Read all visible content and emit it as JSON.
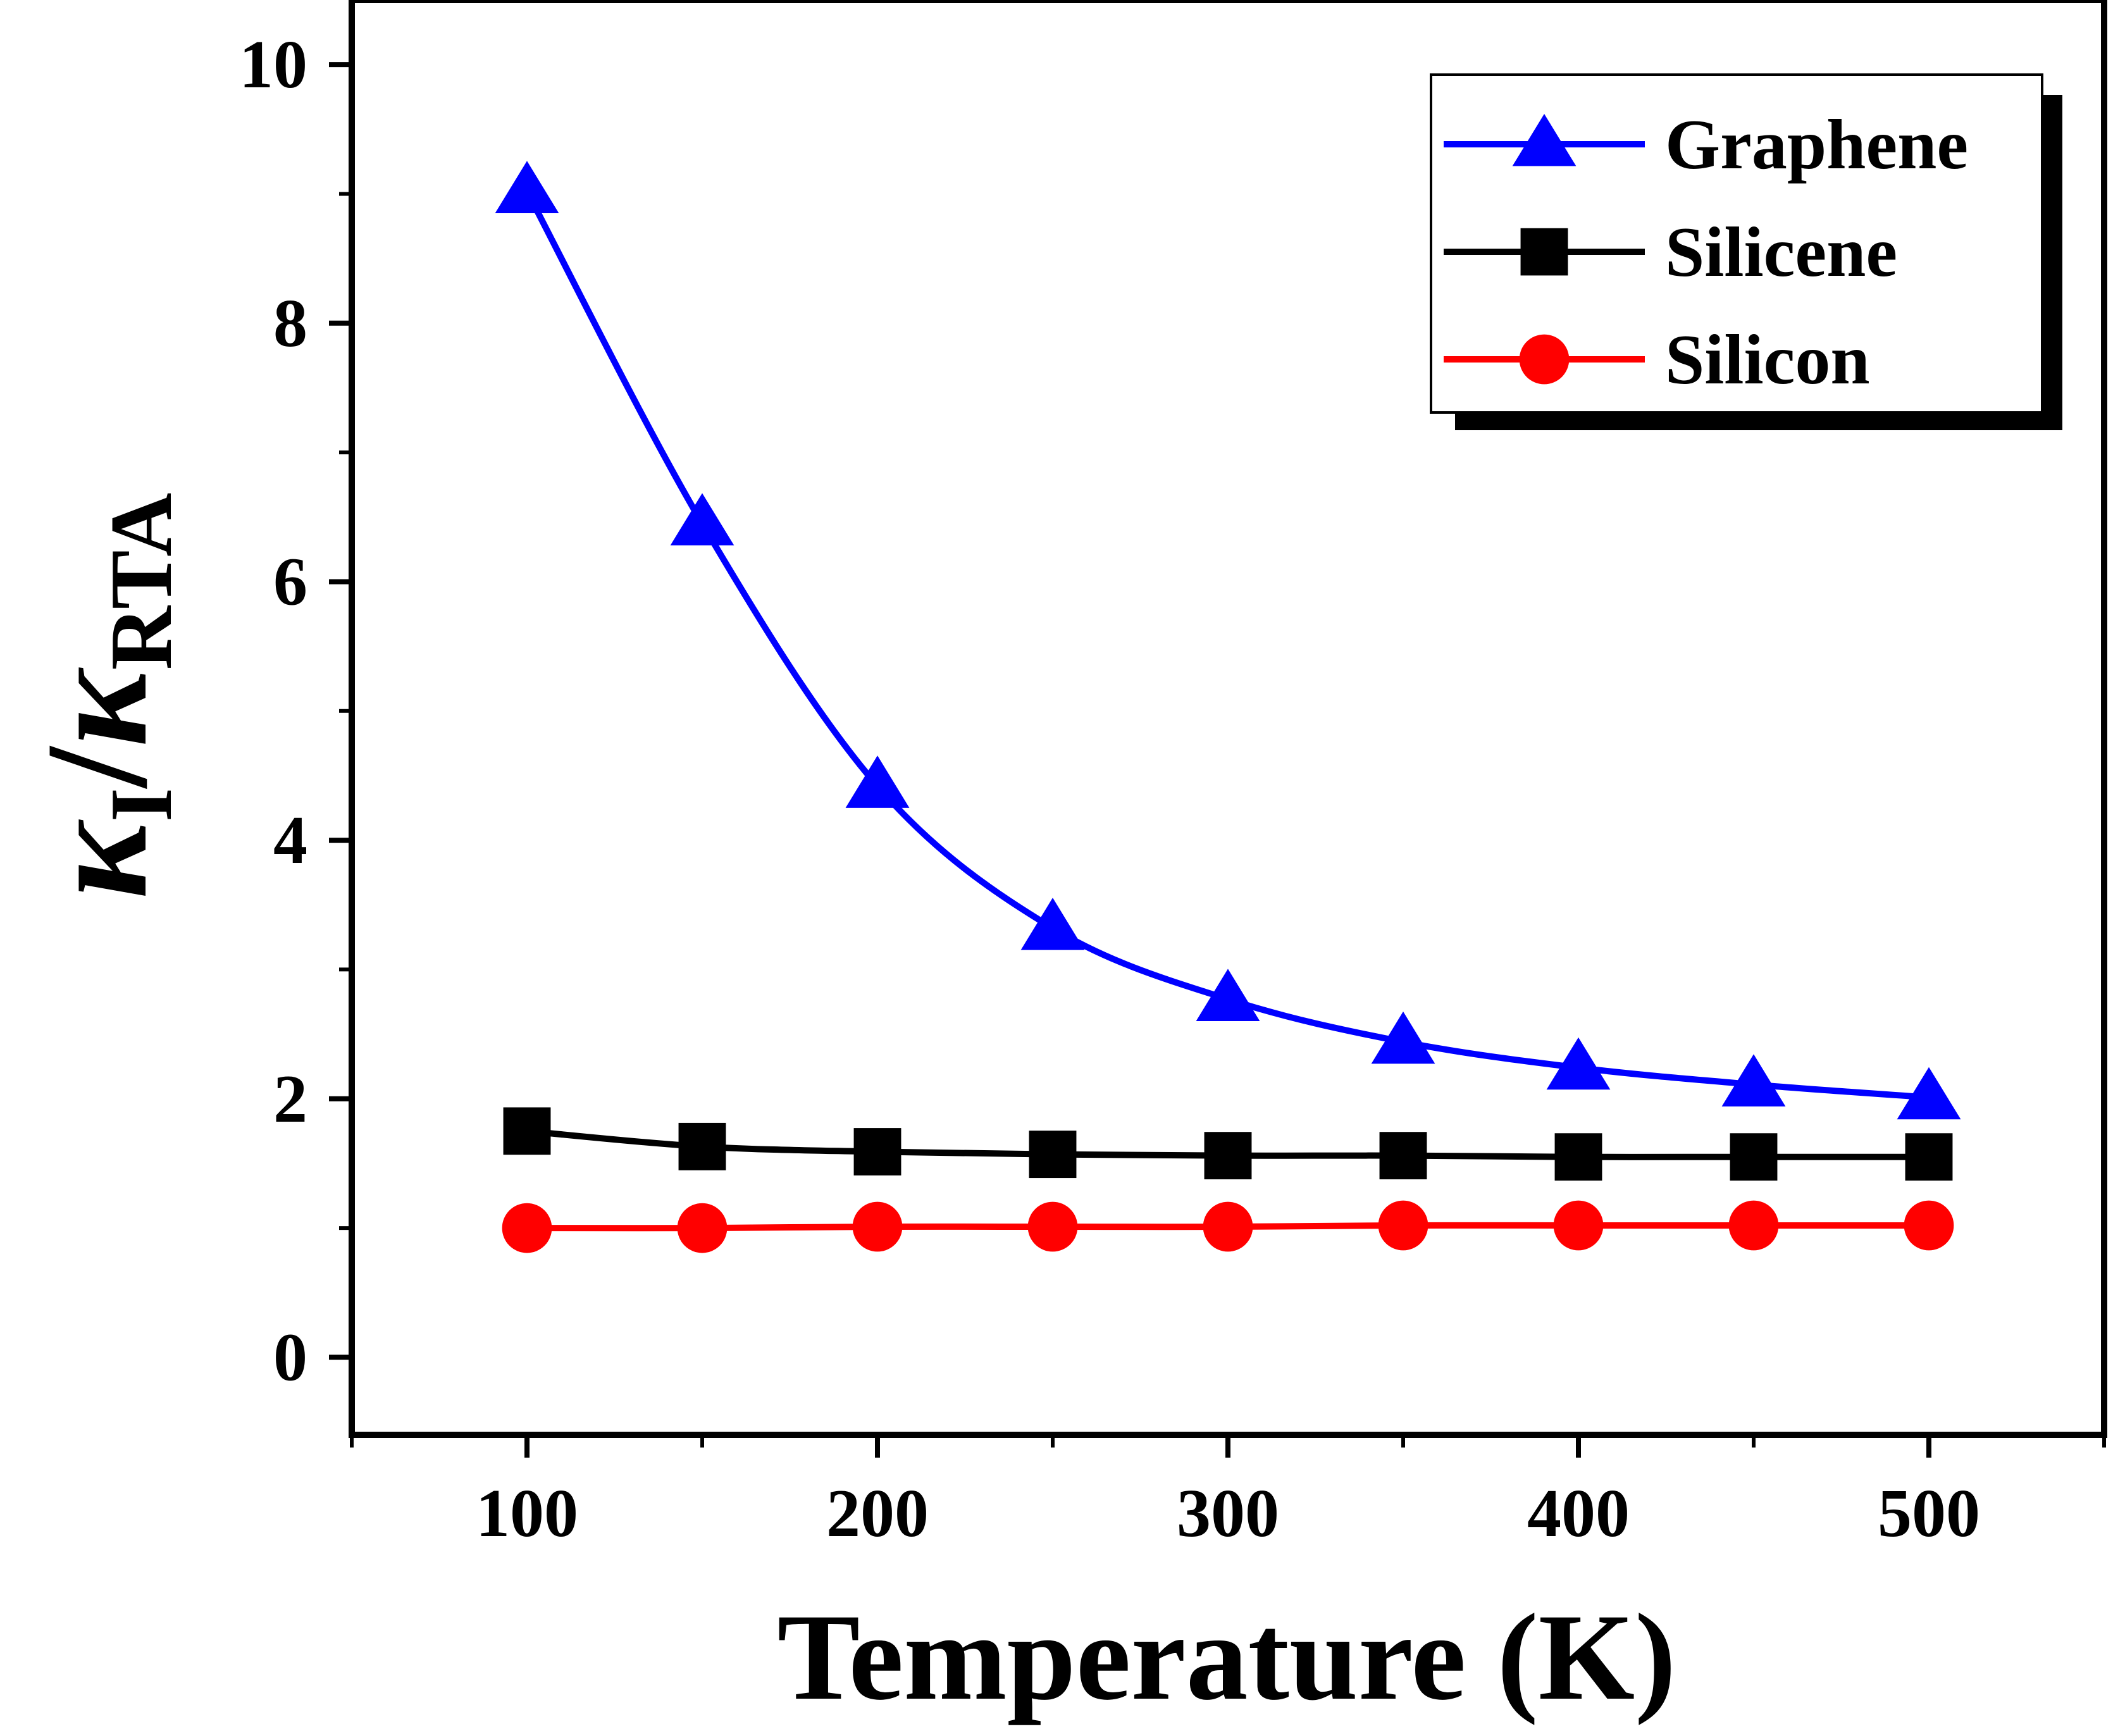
{
  "chart_data": {
    "type": "line",
    "title": "",
    "xlabel": "Temperature (K)",
    "ylabel": {
      "kappa_symbol": "κ",
      "numerator_subscript": "I",
      "slash": "/",
      "denominator_subscript": "RTA"
    },
    "x": [
      100,
      150,
      200,
      250,
      300,
      350,
      400,
      450,
      500
    ],
    "xlim": [
      50,
      550
    ],
    "ylim": [
      -0.6,
      10.5
    ],
    "xticks": [
      "100",
      "200",
      "300",
      "400",
      "500"
    ],
    "yticks": [
      "0",
      "2",
      "4",
      "6",
      "8",
      "10"
    ],
    "grid": false,
    "legend_position": "top-right",
    "series": [
      {
        "name": "Graphene",
        "color": "#0000ff",
        "marker": "triangle",
        "values": [
          9.02,
          6.45,
          4.42,
          3.32,
          2.77,
          2.44,
          2.24,
          2.11,
          2.01
        ]
      },
      {
        "name": "Silicene",
        "color": "#000000",
        "marker": "square",
        "values": [
          1.75,
          1.63,
          1.59,
          1.57,
          1.56,
          1.56,
          1.55,
          1.55,
          1.55
        ]
      },
      {
        "name": "Silicon",
        "color": "#ff0000",
        "marker": "circle",
        "values": [
          1.0,
          1.0,
          1.01,
          1.01,
          1.01,
          1.02,
          1.02,
          1.02,
          1.02
        ]
      }
    ]
  }
}
